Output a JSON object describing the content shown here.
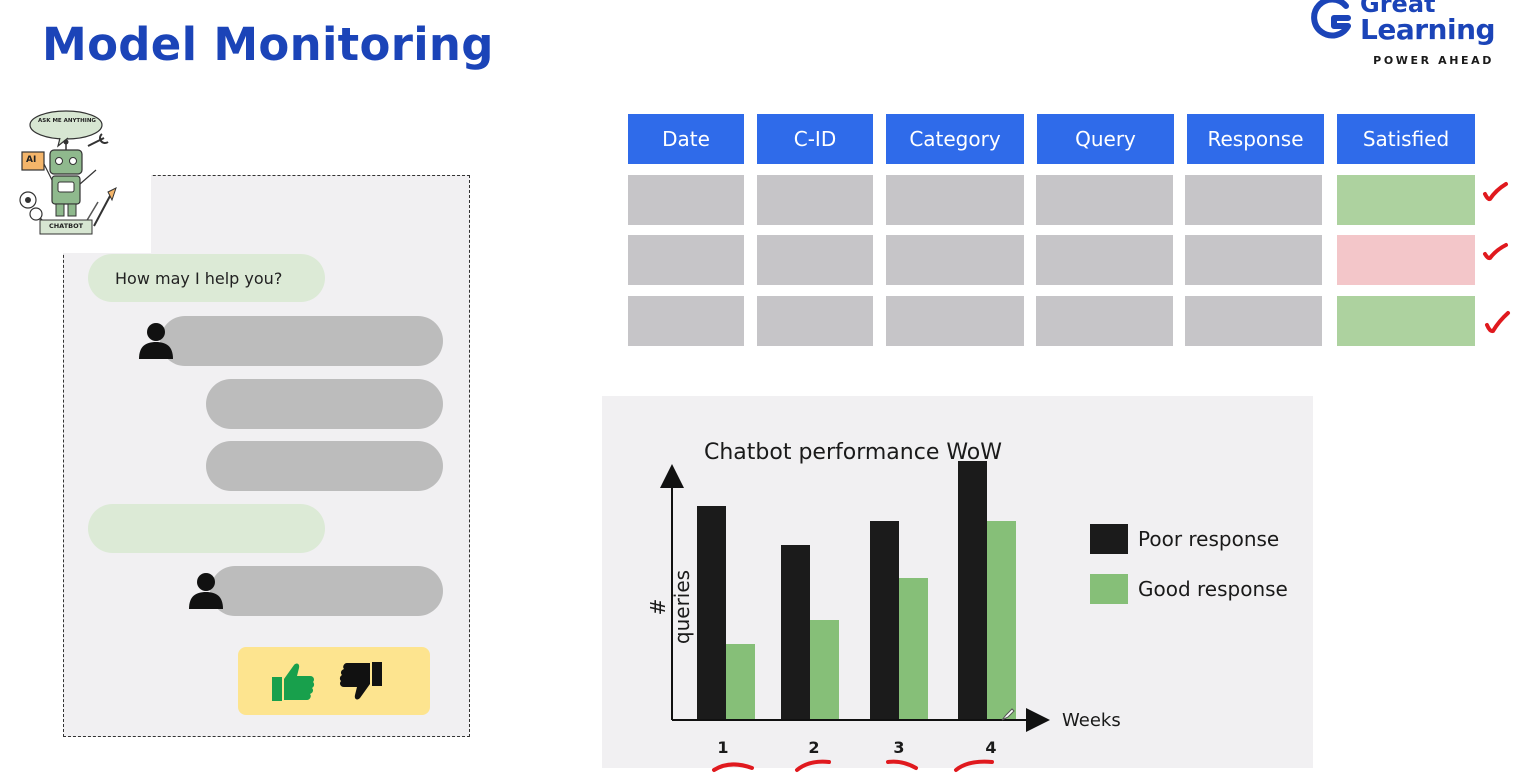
{
  "slide": {
    "title": "Model Monitoring"
  },
  "logo": {
    "line1": "Great",
    "line2": "Learning",
    "tagline": "POWER AHEAD",
    "color": "#1b44b8"
  },
  "robot": {
    "speech": "ASK ME ANYTHING",
    "badge": "CHATBOT",
    "screen": "AI"
  },
  "chat": {
    "bot_greeting": "How may I help you?",
    "feedback": {
      "thumbs_up_color": "#18a04c",
      "thumbs_down_color": "#111111",
      "box_color": "#fde48f"
    }
  },
  "table": {
    "headers": [
      "Date",
      "C-ID",
      "Category",
      "Query",
      "Response",
      "Satisfied"
    ],
    "rows": [
      {
        "satisfied_status": "green"
      },
      {
        "satisfied_status": "pink"
      },
      {
        "satisfied_status": "green"
      }
    ],
    "header_color": "#2f6bea"
  },
  "chart_data": {
    "type": "bar",
    "title": "Chatbot performance WoW",
    "xlabel": "Weeks",
    "ylabel": "# queries",
    "categories": [
      "1",
      "2",
      "3",
      "4"
    ],
    "series": [
      {
        "name": "Poor response",
        "values": [
          71,
          58,
          66,
          86
        ],
        "color": "#1b1b1b"
      },
      {
        "name": "Good response",
        "values": [
          25,
          33,
          47,
          66
        ],
        "color": "#86bf78"
      }
    ],
    "ylim": [
      0,
      100
    ],
    "legend": "right",
    "grid": false
  }
}
